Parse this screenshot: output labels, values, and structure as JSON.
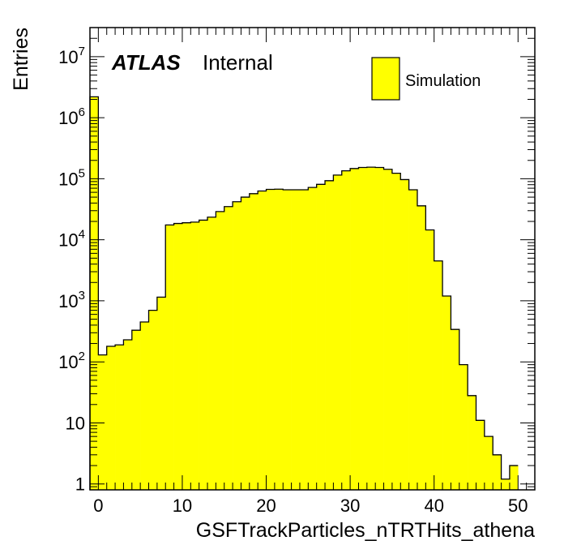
{
  "chart_data": {
    "type": "bar",
    "histogram": true,
    "xlabel": "GSFTrackParticles_nTRTHits_athena",
    "ylabel": "Entries",
    "xlim": [
      -1,
      52
    ],
    "ylim": [
      0.8,
      30000000
    ],
    "log_y": true,
    "grid": false,
    "legend_position": "top-right",
    "bin_edges_start": -1,
    "bin_width": 1,
    "values": [
      2200000,
      130,
      180,
      190,
      230,
      330,
      450,
      700,
      1150,
      17500,
      18500,
      19000,
      19500,
      21000,
      23500,
      29000,
      35000,
      42000,
      50000,
      57000,
      63000,
      67000,
      67500,
      66000,
      66000,
      66000,
      72000,
      81000,
      93000,
      115000,
      135000,
      147000,
      153000,
      155000,
      153000,
      143000,
      123000,
      97000,
      66000,
      36000,
      14500,
      4500,
      1200,
      340,
      90,
      28,
      11,
      6,
      3,
      1.2
    ],
    "last_bin_value": 2,
    "x_ticks": [
      {
        "value": 0,
        "label": "0"
      },
      {
        "value": 10,
        "label": "10"
      },
      {
        "value": 20,
        "label": "20"
      },
      {
        "value": 30,
        "label": "30"
      },
      {
        "value": 40,
        "label": "40"
      },
      {
        "value": 50,
        "label": "50"
      }
    ],
    "y_ticks": [
      {
        "value": 1,
        "base": "1",
        "exp": ""
      },
      {
        "value": 10,
        "base": "10",
        "exp": ""
      },
      {
        "value": 100,
        "base": "10",
        "exp": "2"
      },
      {
        "value": 1000,
        "base": "10",
        "exp": "3"
      },
      {
        "value": 10000,
        "base": "10",
        "exp": "4"
      },
      {
        "value": 100000,
        "base": "10",
        "exp": "5"
      },
      {
        "value": 1000000,
        "base": "10",
        "exp": "6"
      },
      {
        "value": 10000000,
        "base": "10",
        "exp": "7"
      }
    ],
    "fill_color": "#ffff00",
    "line_color": "#000000",
    "atlas_label": "ATLAS",
    "atlas_sub_label": "Internal",
    "legend": [
      {
        "name": "Simulation",
        "color": "#ffff00"
      }
    ]
  }
}
